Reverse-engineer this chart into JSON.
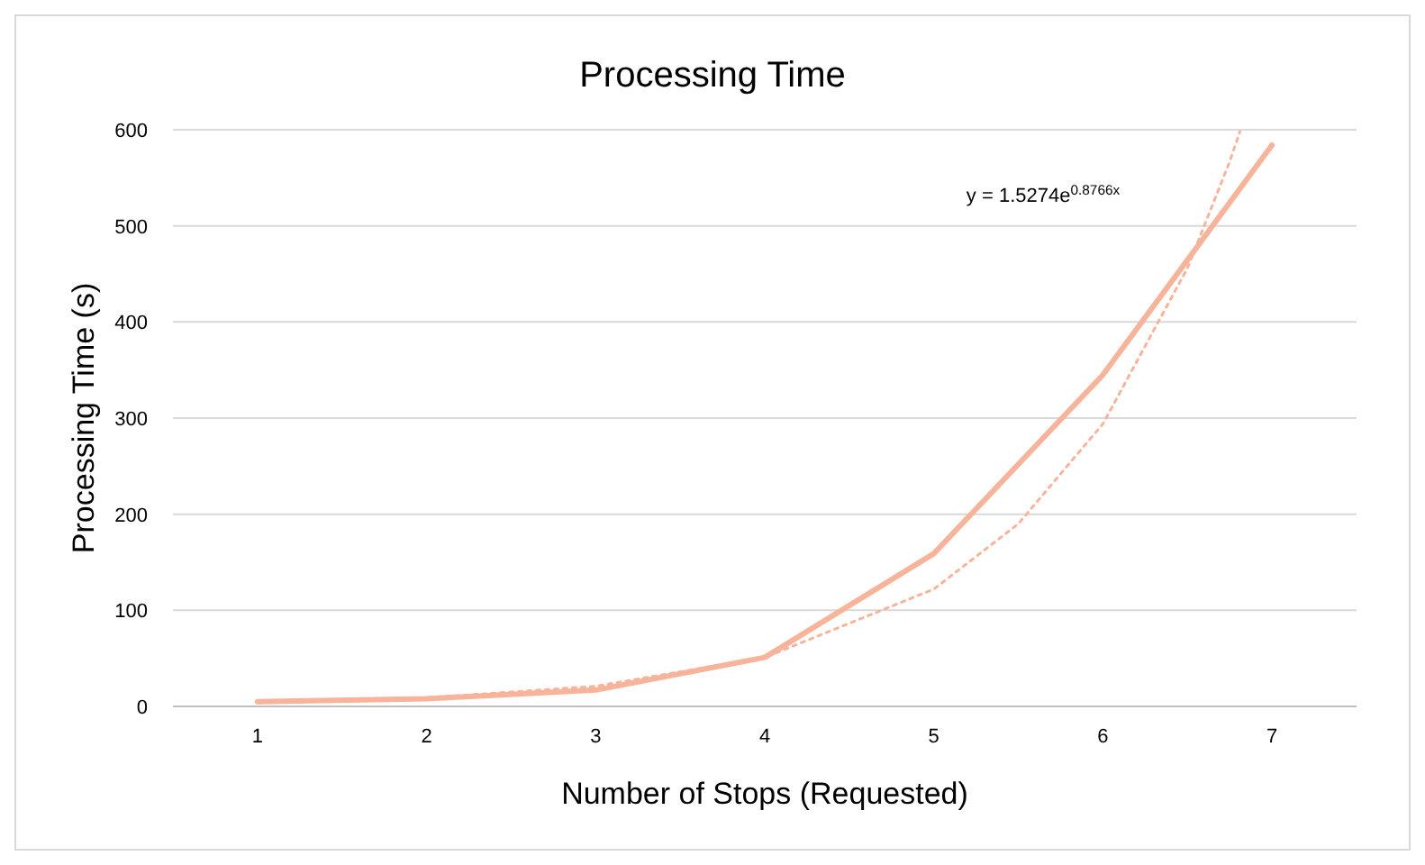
{
  "chart_data": {
    "type": "line",
    "title": "Processing Time",
    "xlabel": "Number of Stops (Requested)",
    "ylabel": "Processing Time (s)",
    "xlim": [
      0.5,
      7.5
    ],
    "xticks": [
      1,
      2,
      3,
      4,
      5,
      6,
      7
    ],
    "ylim": [
      0,
      600
    ],
    "yticks": [
      0,
      100,
      200,
      300,
      400,
      500,
      600
    ],
    "grid": "y",
    "series": [
      {
        "color": "#f8b49a",
        "x": [
          1,
          2,
          3,
          4,
          5,
          6,
          7
        ],
        "values": [
          5,
          8,
          17,
          51,
          159,
          345,
          584
        ],
        "line_style": "solid"
      },
      {
        "color": "#f8b49a",
        "x": [
          1,
          2,
          3,
          4,
          5,
          5.5,
          6,
          6.5,
          6.75,
          6.81
        ],
        "values": [
          4,
          9,
          21,
          51,
          122,
          190,
          294,
          456,
          567,
          598
        ],
        "line_style": "dotted"
      }
    ],
    "annotations": [
      "y = 1.5274e$^{0.8766x}$"
    ]
  }
}
